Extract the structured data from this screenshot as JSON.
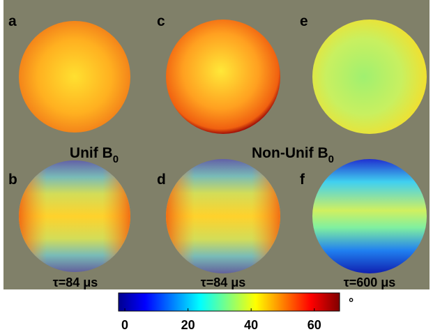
{
  "chart_data": {
    "type": "colorbar",
    "panel_labels": [
      "a",
      "b",
      "c",
      "d",
      "e",
      "f"
    ],
    "group_labels": [
      {
        "text": "Unif B",
        "sub": "0"
      },
      {
        "text": "Non-Unif B",
        "sub": "0"
      }
    ],
    "tau_labels": [
      "τ=84 μs",
      "τ=84 μs",
      "τ=600 μs"
    ],
    "colorbar": {
      "lim": [
        -2,
        68
      ],
      "ticks": [
        0,
        20,
        40,
        60
      ],
      "unit": "°"
    }
  }
}
